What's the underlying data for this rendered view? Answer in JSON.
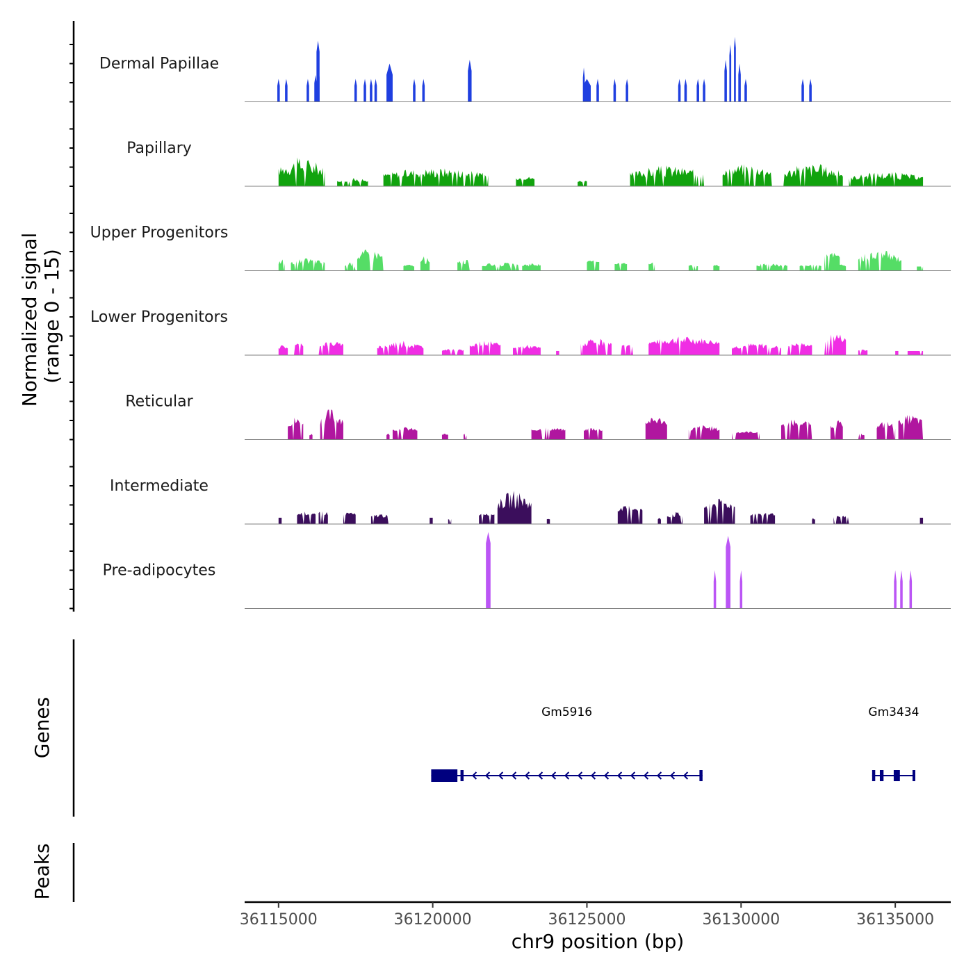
{
  "chart_data": {
    "type": "coverage-tracks",
    "ylabel_line1": "Normalized signal",
    "ylabel_line2": "(range 0 - 15)",
    "xlabel": "chr9 position (bp)",
    "xlim": [
      36113900,
      36136800
    ],
    "x_ticks": [
      36115000,
      36120000,
      36125000,
      36130000,
      36135000
    ],
    "x_tick_labels": [
      "36115000",
      "36120000",
      "36125000",
      "36130000",
      "36135000"
    ],
    "tracks": [
      {
        "name": "Dermal Papillae",
        "color": "#1f3fe0",
        "style": "blocks",
        "peaks": [
          [
            36115000,
            0.3,
            80
          ],
          [
            36115250,
            0.3,
            80
          ],
          [
            36115950,
            0.3,
            80
          ],
          [
            36116200,
            0.35,
            80
          ],
          [
            36116280,
            0.8,
            100
          ],
          [
            36116300,
            0.45,
            60
          ],
          [
            36117500,
            0.3,
            80
          ],
          [
            36117800,
            0.3,
            80
          ],
          [
            36118000,
            0.3,
            80
          ],
          [
            36118150,
            0.3,
            80
          ],
          [
            36118600,
            0.5,
            200
          ],
          [
            36119400,
            0.3,
            80
          ],
          [
            36119700,
            0.3,
            80
          ],
          [
            36121200,
            0.55,
            120
          ],
          [
            36124900,
            0.45,
            60
          ],
          [
            36125000,
            0.3,
            250
          ],
          [
            36125350,
            0.3,
            80
          ],
          [
            36125900,
            0.3,
            80
          ],
          [
            36126300,
            0.3,
            80
          ],
          [
            36128000,
            0.3,
            80
          ],
          [
            36128200,
            0.3,
            80
          ],
          [
            36128600,
            0.3,
            80
          ],
          [
            36128800,
            0.3,
            80
          ],
          [
            36129500,
            0.55,
            80
          ],
          [
            36129650,
            0.75,
            60
          ],
          [
            36129800,
            0.85,
            60
          ],
          [
            36129950,
            0.5,
            80
          ],
          [
            36130150,
            0.3,
            80
          ],
          [
            36132000,
            0.3,
            80
          ],
          [
            36132250,
            0.3,
            80
          ]
        ]
      },
      {
        "name": "Papillary",
        "color": "#11a30e",
        "style": "ridge",
        "regions": [
          [
            36115000,
            36116500,
            0.25,
            0.7
          ],
          [
            36116900,
            36117900,
            0.1,
            0.2
          ],
          [
            36118400,
            36121800,
            0.2,
            0.45
          ],
          [
            36122700,
            36123300,
            0.15,
            0.25
          ],
          [
            36124700,
            36125000,
            0.1,
            0.15
          ],
          [
            36126400,
            36128800,
            0.2,
            0.5
          ],
          [
            36129400,
            36131000,
            0.25,
            0.55
          ],
          [
            36131300,
            36133300,
            0.2,
            0.55
          ],
          [
            36133500,
            36135900,
            0.15,
            0.35
          ]
        ]
      },
      {
        "name": "Upper Progenitors",
        "color": "#55dd66",
        "style": "ridge",
        "regions": [
          [
            36115000,
            36115200,
            0.15,
            0.3
          ],
          [
            36115400,
            36116500,
            0.15,
            0.3
          ],
          [
            36117150,
            36117500,
            0.1,
            0.2
          ],
          [
            36117550,
            36118400,
            0.25,
            0.55
          ],
          [
            36119050,
            36119400,
            0.1,
            0.15
          ],
          [
            36119600,
            36119900,
            0.15,
            0.35
          ],
          [
            36120800,
            36121200,
            0.15,
            0.3
          ],
          [
            36121600,
            36122800,
            0.1,
            0.2
          ],
          [
            36122900,
            36123500,
            0.1,
            0.2
          ],
          [
            36125000,
            36125400,
            0.2,
            0.25
          ],
          [
            36125900,
            36126300,
            0.15,
            0.2
          ],
          [
            36127000,
            36127200,
            0.15,
            0.25
          ],
          [
            36128300,
            36128600,
            0.1,
            0.15
          ],
          [
            36129100,
            36129300,
            0.1,
            0.15
          ],
          [
            36130500,
            36131500,
            0.1,
            0.2
          ],
          [
            36131900,
            36132600,
            0.1,
            0.15
          ],
          [
            36132700,
            36133200,
            0.3,
            0.45
          ],
          [
            36133000,
            36133400,
            0.1,
            0.15
          ],
          [
            36133800,
            36135200,
            0.2,
            0.5
          ],
          [
            36135700,
            36135900,
            0.1,
            0.1
          ]
        ]
      },
      {
        "name": "Lower Progenitors",
        "color": "#f02de4",
        "style": "ridge",
        "regions": [
          [
            36115000,
            36115300,
            0.15,
            0.25
          ],
          [
            36115500,
            36115800,
            0.2,
            0.3
          ],
          [
            36116300,
            36117100,
            0.2,
            0.35
          ],
          [
            36118200,
            36119700,
            0.15,
            0.35
          ],
          [
            36120300,
            36121000,
            0.1,
            0.15
          ],
          [
            36121200,
            36122200,
            0.2,
            0.35
          ],
          [
            36122600,
            36123500,
            0.15,
            0.25
          ],
          [
            36124000,
            36124100,
            0.1,
            0.1
          ],
          [
            36124800,
            36125800,
            0.2,
            0.4
          ],
          [
            36126100,
            36126500,
            0.2,
            0.25
          ],
          [
            36127000,
            36129300,
            0.25,
            0.45
          ],
          [
            36129700,
            36131300,
            0.15,
            0.3
          ],
          [
            36131500,
            36132300,
            0.2,
            0.3
          ],
          [
            36132700,
            36133400,
            0.3,
            0.55
          ],
          [
            36133800,
            36134100,
            0.1,
            0.15
          ],
          [
            36135000,
            36135100,
            0.1,
            0.1
          ],
          [
            36135400,
            36135900,
            0.1,
            0.1
          ]
        ]
      },
      {
        "name": "Reticular",
        "color": "#b0169f",
        "style": "ridge",
        "regions": [
          [
            36115300,
            36115800,
            0.3,
            0.55
          ],
          [
            36116000,
            36116100,
            0.1,
            0.15
          ],
          [
            36116350,
            36117100,
            0.35,
            0.75
          ],
          [
            36118500,
            36118600,
            0.1,
            0.15
          ],
          [
            36118700,
            36119500,
            0.2,
            0.3
          ],
          [
            36120300,
            36120500,
            0.1,
            0.15
          ],
          [
            36121000,
            36121100,
            0.1,
            0.15
          ],
          [
            36123200,
            36124300,
            0.2,
            0.3
          ],
          [
            36124900,
            36125500,
            0.2,
            0.3
          ],
          [
            36126900,
            36127600,
            0.35,
            0.55
          ],
          [
            36128300,
            36129300,
            0.2,
            0.35
          ],
          [
            36129700,
            36130600,
            0.15,
            0.2
          ],
          [
            36131300,
            36132300,
            0.3,
            0.5
          ],
          [
            36132900,
            36133300,
            0.25,
            0.5
          ],
          [
            36133800,
            36134000,
            0.1,
            0.15
          ],
          [
            36134400,
            36135000,
            0.25,
            0.45
          ],
          [
            36135100,
            36135900,
            0.35,
            0.6
          ]
        ]
      },
      {
        "name": "Intermediate",
        "color": "#3b0e5c",
        "style": "ridge",
        "regions": [
          [
            36115000,
            36115100,
            0.15,
            0.15
          ],
          [
            36115600,
            36116200,
            0.2,
            0.3
          ],
          [
            36116300,
            36116600,
            0.2,
            0.35
          ],
          [
            36117100,
            36117500,
            0.2,
            0.3
          ],
          [
            36118000,
            36118600,
            0.15,
            0.25
          ],
          [
            36119900,
            36120000,
            0.15,
            0.15
          ],
          [
            36120500,
            36120600,
            0.1,
            0.15
          ],
          [
            36121500,
            36122000,
            0.2,
            0.3
          ],
          [
            36122100,
            36123200,
            0.35,
            0.8
          ],
          [
            36123700,
            36123800,
            0.1,
            0.15
          ],
          [
            36126000,
            36126800,
            0.3,
            0.45
          ],
          [
            36127300,
            36127400,
            0.1,
            0.15
          ],
          [
            36127600,
            36128100,
            0.15,
            0.3
          ],
          [
            36128800,
            36129800,
            0.35,
            0.6
          ],
          [
            36130300,
            36131100,
            0.2,
            0.3
          ],
          [
            36132300,
            36132400,
            0.1,
            0.15
          ],
          [
            36133000,
            36133500,
            0.15,
            0.2
          ],
          [
            36135800,
            36135900,
            0.15,
            0.15
          ]
        ]
      },
      {
        "name": "Pre-adipocytes",
        "color": "#bb55f5",
        "style": "blocks",
        "peaks": [
          [
            36121800,
            1.0,
            150
          ],
          [
            36129150,
            0.5,
            80
          ],
          [
            36129580,
            0.95,
            150
          ],
          [
            36130000,
            0.5,
            80
          ],
          [
            36135000,
            0.5,
            80
          ],
          [
            36135200,
            0.5,
            80
          ],
          [
            36135500,
            0.5,
            80
          ]
        ]
      }
    ],
    "genes_label": "Genes",
    "peaks_label": "Peaks",
    "genes": [
      {
        "name": "Gm5916",
        "start": 36119950,
        "end": 36128750,
        "strand": "-",
        "exons": [
          [
            36119950,
            36120800
          ],
          [
            36120900,
            36121000
          ],
          [
            36128650,
            36128750
          ]
        ]
      },
      {
        "name": "Gm3434",
        "start": 36134250,
        "end": 36135650,
        "strand": "-",
        "exons": [
          [
            36134250,
            36134350
          ],
          [
            36134500,
            36134620
          ],
          [
            36134950,
            36135150
          ],
          [
            36135560,
            36135650
          ]
        ]
      }
    ]
  }
}
